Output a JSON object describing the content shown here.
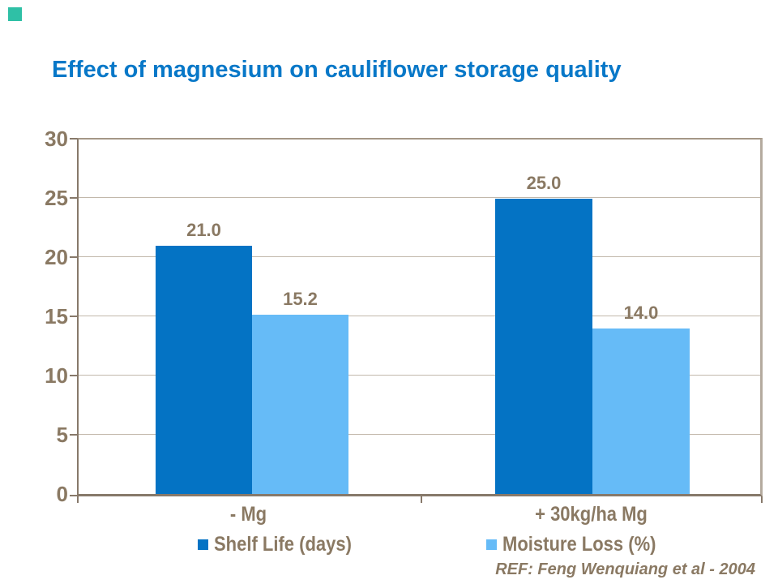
{
  "slide": {
    "title": "Effect of magnesium on cauliflower storage quality",
    "reference": "REF: Feng Wenquiang et al - 2004"
  },
  "colors": {
    "title_blue": "#0878C8",
    "shelf_life_bar": "#0473C4",
    "moisture_loss_bar": "#66BBF7",
    "axis_text_brown": "#8A7963",
    "axis_line_brown": "#87796A",
    "gridline": "#C2B8AB",
    "corner_accent": "#2FC0A6"
  },
  "chart_data": {
    "type": "bar",
    "title": "Effect of magnesium on cauliflower storage quality",
    "categories": [
      "- Mg",
      "+ 30kg/ha Mg"
    ],
    "series": [
      {
        "name": "Shelf Life (days)",
        "color": "#0473C4",
        "values": [
          21.0,
          25.0
        ],
        "labels": [
          "21.0",
          "25.0"
        ]
      },
      {
        "name": "Moisture Loss (%)",
        "color": "#66BBF7",
        "values": [
          15.2,
          14.0
        ],
        "labels": [
          "15.2",
          "14.0"
        ]
      }
    ],
    "xlabel": "",
    "ylabel": "",
    "ylim": [
      0,
      30
    ],
    "yticks": [
      0,
      5,
      10,
      15,
      20,
      25,
      30
    ],
    "grid": true,
    "legend_position": "bottom",
    "annotation": "REF: Feng Wenquiang et al - 2004"
  }
}
